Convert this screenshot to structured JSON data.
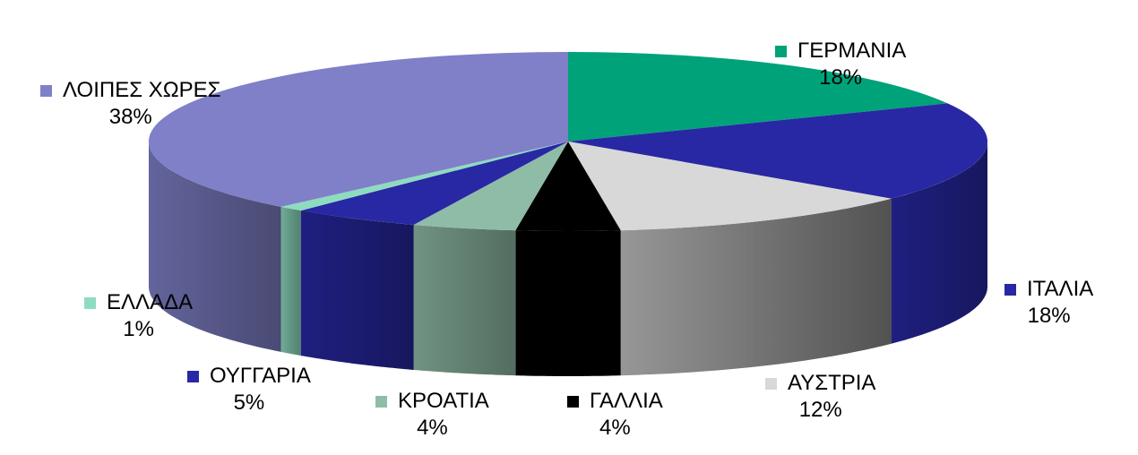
{
  "chart_data": {
    "type": "pie",
    "style": "3d-pie",
    "legend": "labels beside slices",
    "slices": [
      {
        "name": "ΓΕΡΜΑΝΙΑ",
        "value": 18,
        "label": "18%",
        "color": "#00a27a"
      },
      {
        "name": "ΙΤΑΛΙΑ",
        "value": 18,
        "label": "18%",
        "color": "#2828a4"
      },
      {
        "name": "ΑΥΣΤΡΙΑ",
        "value": 12,
        "label": "12%",
        "color": "#d8d8d8"
      },
      {
        "name": "ΓΑΛΛΙΑ",
        "value": 4,
        "label": "4%",
        "color": "#000000"
      },
      {
        "name": "ΚΡΟΑΤΙΑ",
        "value": 4,
        "label": "4%",
        "color": "#8fbca7"
      },
      {
        "name": "ΟΥΓΓΑΡΙΑ",
        "value": 5,
        "label": "5%",
        "color": "#2828a4"
      },
      {
        "name": "ΕΛΛΑΔΑ",
        "value": 1,
        "label": "1%",
        "color": "#8edcc0"
      },
      {
        "name": "ΛΟΙΠΕΣ ΧΩΡΕΣ",
        "value": 38,
        "label": "38%",
        "color": "#7f80c8"
      }
    ]
  }
}
